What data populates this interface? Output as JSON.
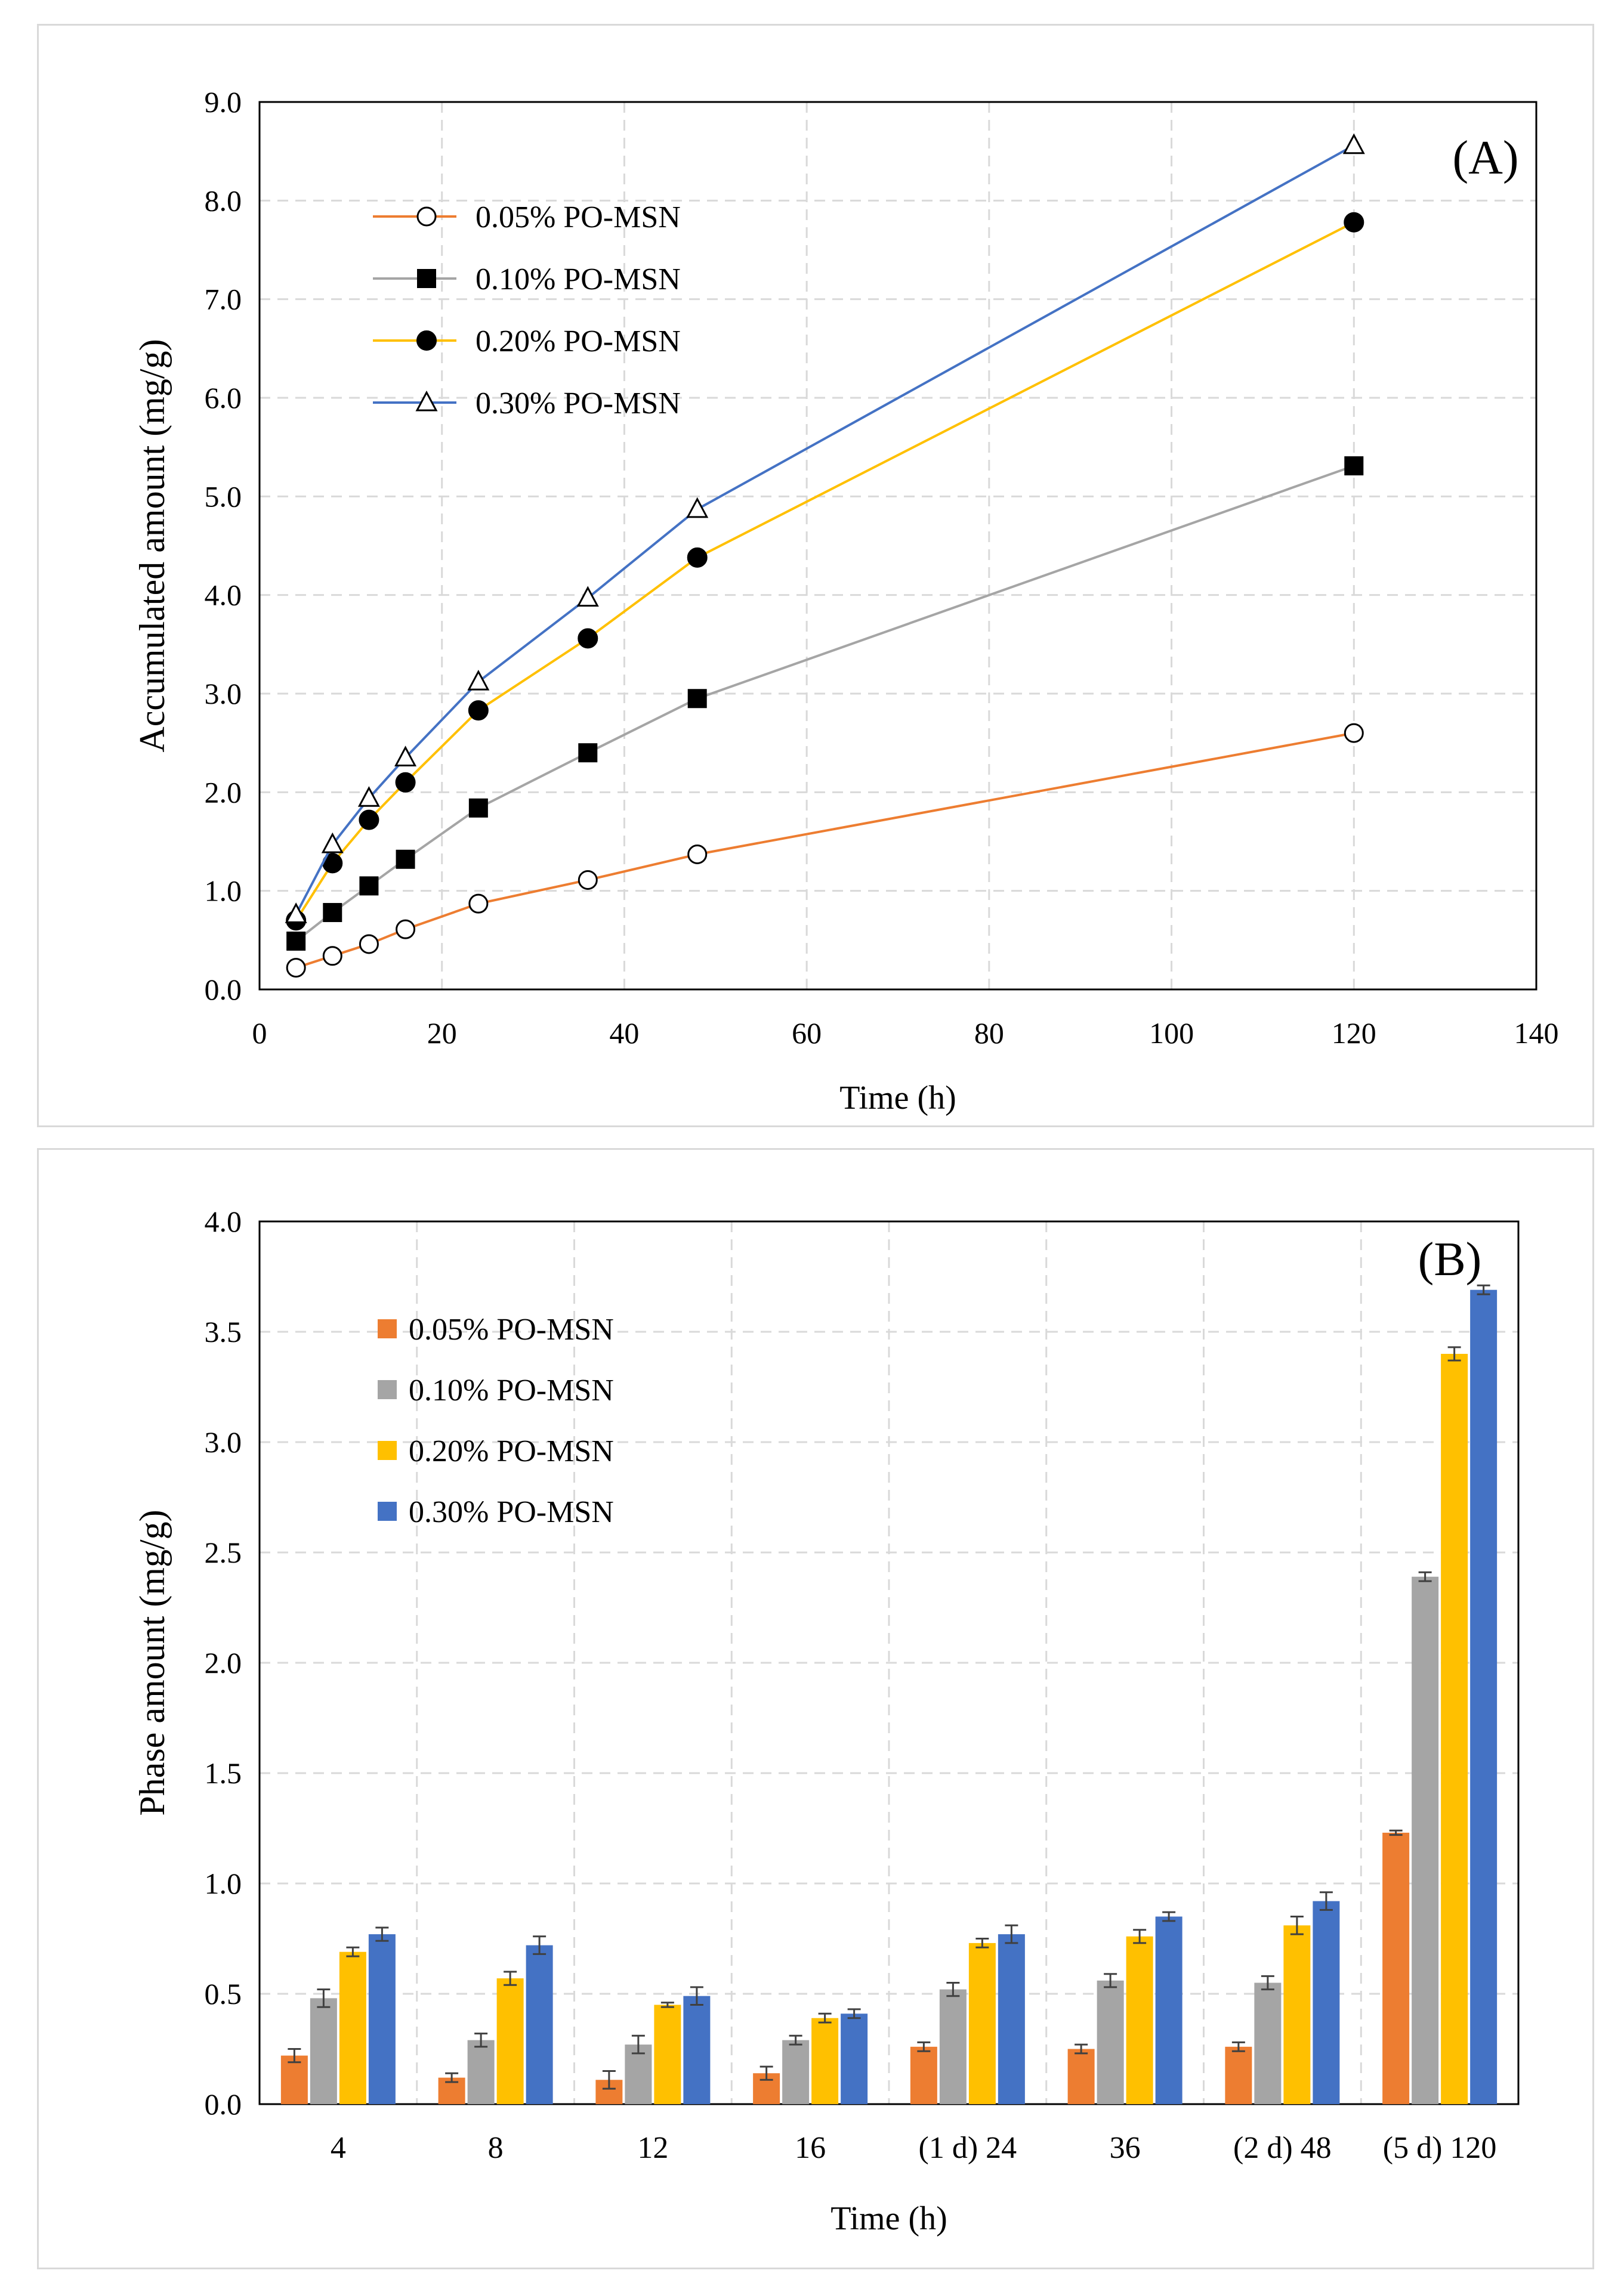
{
  "chart_data": [
    {
      "type": "line",
      "panel_label": "(A)",
      "xlabel": "Time  (h)",
      "ylabel": "Accumulated amount (mg/g)",
      "xlim": [
        0,
        140
      ],
      "ylim": [
        0,
        9
      ],
      "xticks": [
        0,
        20,
        40,
        60,
        80,
        100,
        120,
        140
      ],
      "xtick_labels": [
        "0",
        "20",
        "40",
        "60",
        "80",
        "100",
        "120",
        "140"
      ],
      "yticks": [
        0,
        1,
        2,
        3,
        4,
        5,
        6,
        7,
        8,
        9
      ],
      "ytick_labels": [
        "0.0",
        "1.0",
        "2.0",
        "3.0",
        "4.0",
        "5.0",
        "6.0",
        "7.0",
        "8.0",
        "9.0"
      ],
      "grid": true,
      "legend_position": "upper-left",
      "x": [
        4,
        8,
        12,
        16,
        24,
        36,
        48,
        120
      ],
      "series": [
        {
          "name": "0.05% PO-MSN",
          "color": "#ED7D31",
          "marker": "open-circle",
          "values": [
            0.22,
            0.34,
            0.46,
            0.61,
            0.87,
            1.11,
            1.37,
            2.6
          ]
        },
        {
          "name": "0.10% PO-MSN",
          "color": "#A5A5A5",
          "marker": "filled-square",
          "values": [
            0.49,
            0.78,
            1.05,
            1.32,
            1.84,
            2.4,
            2.95,
            5.31
          ]
        },
        {
          "name": "0.20% PO-MSN",
          "color": "#FFC000",
          "marker": "filled-circle",
          "values": [
            0.7,
            1.28,
            1.72,
            2.1,
            2.83,
            3.56,
            4.38,
            7.78
          ]
        },
        {
          "name": "0.30% PO-MSN",
          "color": "#4472C4",
          "marker": "open-triangle",
          "values": [
            0.76,
            1.47,
            1.94,
            2.35,
            3.12,
            3.97,
            4.87,
            8.56
          ]
        }
      ]
    },
    {
      "type": "bar",
      "panel_label": "(B)",
      "xlabel": "Time  (h)",
      "ylabel": "Phase amount (mg/g)",
      "ylim": [
        0,
        4
      ],
      "yticks": [
        0,
        0.5,
        1,
        1.5,
        2,
        2.5,
        3,
        3.5,
        4
      ],
      "ytick_labels": [
        "0.0",
        "0.5",
        "1.0",
        "1.5",
        "2.0",
        "2.5",
        "3.0",
        "3.5",
        "4.0"
      ],
      "grid": true,
      "legend_position": "upper-left",
      "categories": [
        "4",
        "8",
        "12",
        "16",
        "(1 d)   24",
        "36",
        "(2 d)   48",
        "(5 d) 120"
      ],
      "series": [
        {
          "name": "0.05% PO-MSN",
          "color": "#ED7D31",
          "values": [
            0.22,
            0.12,
            0.11,
            0.14,
            0.26,
            0.25,
            0.26,
            1.23
          ],
          "errors": [
            0.03,
            0.02,
            0.04,
            0.03,
            0.02,
            0.02,
            0.02,
            0.01
          ]
        },
        {
          "name": "0.10% PO-MSN",
          "color": "#A5A5A5",
          "values": [
            0.48,
            0.29,
            0.27,
            0.29,
            0.52,
            0.56,
            0.55,
            2.39
          ],
          "errors": [
            0.04,
            0.03,
            0.04,
            0.02,
            0.03,
            0.03,
            0.03,
            0.02
          ]
        },
        {
          "name": "0.20% PO-MSN",
          "color": "#FFC000",
          "values": [
            0.69,
            0.57,
            0.45,
            0.39,
            0.73,
            0.76,
            0.81,
            3.4
          ],
          "errors": [
            0.02,
            0.03,
            0.01,
            0.02,
            0.02,
            0.03,
            0.04,
            0.03
          ]
        },
        {
          "name": "0.30% PO-MSN",
          "color": "#4472C4",
          "values": [
            0.77,
            0.72,
            0.49,
            0.41,
            0.77,
            0.85,
            0.92,
            3.69
          ],
          "errors": [
            0.03,
            0.04,
            0.04,
            0.02,
            0.04,
            0.02,
            0.04,
            0.02
          ]
        }
      ]
    }
  ]
}
